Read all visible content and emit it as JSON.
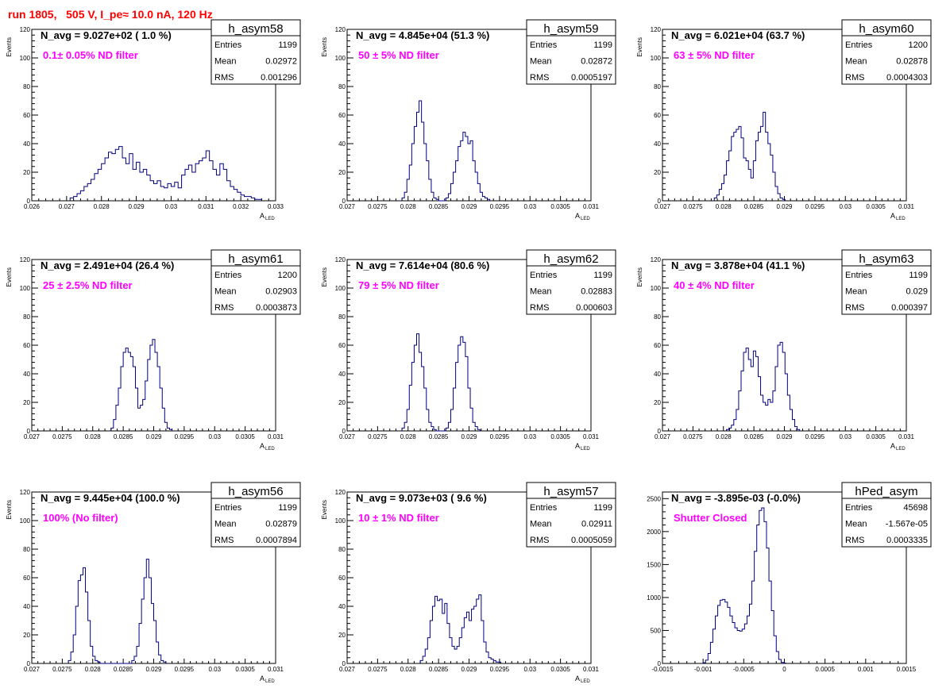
{
  "run_title": "run 1805,   505 V, I_pe≈ 10.0 nA, 120 Hz",
  "colors": {
    "histogram": "#000080",
    "annotation": "#ff00ff",
    "title": "#ff0000",
    "frame": "#000000"
  },
  "stat_labels": {
    "entries": "Entries",
    "mean": "Mean",
    "rms": "RMS"
  },
  "chart_data": [
    {
      "type": "histogram",
      "name": "h_asym58",
      "ylabel": "Events",
      "xlabel": "A",
      "xlabel_sub": "LED",
      "xlim": [
        0.026,
        0.033
      ],
      "ylim": [
        0,
        120
      ],
      "xticks": [
        0.026,
        0.027,
        0.028,
        0.029,
        0.03,
        0.031,
        0.032,
        0.033
      ],
      "xtick_labels": [
        "0.026",
        "0.027",
        "0.028",
        "0.029",
        "0.03",
        "0.031",
        "0.032",
        "0.033"
      ],
      "yticks": [
        0,
        20,
        40,
        60,
        80,
        100,
        120
      ],
      "ytick_labels": [
        "0",
        "20",
        "40",
        "60",
        "80",
        "100",
        "120"
      ],
      "header": "N_avg = 9.027e+02 ( 1.0 %)",
      "annotation": "0.1± 0.05% ND filter",
      "stats": {
        "entries": "1199",
        "mean": "0.02972",
        "rms": "0.001296"
      },
      "bins": {
        "start": 0.0271,
        "width": 0.0001,
        "counts": [
          2,
          3,
          5,
          7,
          10,
          12,
          15,
          19,
          22,
          26,
          30,
          34,
          33,
          36,
          38,
          30,
          26,
          33,
          22,
          27,
          20,
          22,
          18,
          14,
          12,
          14,
          10,
          9,
          12,
          10,
          13,
          9,
          18,
          22,
          25,
          20,
          26,
          28,
          30,
          35,
          28,
          22,
          18,
          26,
          22,
          14,
          10,
          8,
          6,
          4,
          3,
          3,
          2,
          1,
          1
        ]
      }
    },
    {
      "type": "histogram",
      "name": "h_asym59",
      "ylabel": "Events",
      "xlabel": "A",
      "xlabel_sub": "LED",
      "xlim": [
        0.027,
        0.031
      ],
      "ylim": [
        0,
        120
      ],
      "xticks": [
        0.027,
        0.0275,
        0.028,
        0.0285,
        0.029,
        0.0295,
        0.03,
        0.0305,
        0.031
      ],
      "xtick_labels": [
        "0.027",
        "0.0275",
        "0.028",
        "0.0285",
        "0.029",
        "0.0295",
        "0.03",
        "0.0305",
        "0.031"
      ],
      "yticks": [
        0,
        20,
        40,
        60,
        80,
        100,
        120
      ],
      "ytick_labels": [
        "0",
        "20",
        "40",
        "60",
        "80",
        "100",
        "120"
      ],
      "header": "N_avg = 4.845e+04 (51.3 %)",
      "annotation": "50 ± 5% ND filter",
      "stats": {
        "entries": "1199",
        "mean": "0.02872",
        "rms": "0.0005197"
      },
      "bins": {
        "start": 0.0279,
        "width": 4e-05,
        "counts": [
          2,
          6,
          15,
          25,
          40,
          52,
          62,
          70,
          55,
          40,
          28,
          15,
          6,
          2,
          1,
          0,
          0,
          0,
          2,
          5,
          12,
          20,
          28,
          38,
          42,
          48,
          45,
          40,
          42,
          28,
          20,
          12,
          6,
          3,
          2,
          1
        ]
      }
    },
    {
      "type": "histogram",
      "name": "h_asym60",
      "ylabel": "Events",
      "xlabel": "A",
      "xlabel_sub": "LED",
      "xlim": [
        0.027,
        0.031
      ],
      "ylim": [
        0,
        120
      ],
      "xticks": [
        0.027,
        0.0275,
        0.028,
        0.0285,
        0.029,
        0.0295,
        0.03,
        0.0305,
        0.031
      ],
      "xtick_labels": [
        "0.027",
        "0.0275",
        "0.028",
        "0.0285",
        "0.029",
        "0.0295",
        "0.03",
        "0.0305",
        "0.031"
      ],
      "yticks": [
        0,
        20,
        40,
        60,
        80,
        100,
        120
      ],
      "ytick_labels": [
        "0",
        "20",
        "40",
        "60",
        "80",
        "100",
        "120"
      ],
      "header": "N_avg = 6.021e+04 (63.7 %)",
      "annotation": "63 ± 5% ND filter",
      "stats": {
        "entries": "1200",
        "mean": "0.02878",
        "rms": "0.0004303"
      },
      "bins": {
        "start": 0.02785,
        "width": 4e-05,
        "counts": [
          2,
          4,
          8,
          12,
          18,
          28,
          35,
          45,
          48,
          50,
          52,
          44,
          30,
          28,
          22,
          16,
          28,
          42,
          48,
          52,
          62,
          48,
          40,
          32,
          20,
          10,
          5,
          2,
          1
        ]
      }
    },
    {
      "type": "histogram",
      "name": "h_asym61",
      "ylabel": "Events",
      "xlabel": "A",
      "xlabel_sub": "LED",
      "xlim": [
        0.027,
        0.031
      ],
      "ylim": [
        0,
        120
      ],
      "xticks": [
        0.027,
        0.0275,
        0.028,
        0.0285,
        0.029,
        0.0295,
        0.03,
        0.0305,
        0.031
      ],
      "xtick_labels": [
        "0.027",
        "0.0275",
        "0.028",
        "0.0285",
        "0.029",
        "0.0295",
        "0.03",
        "0.0305",
        "0.031"
      ],
      "yticks": [
        0,
        20,
        40,
        60,
        80,
        100,
        120
      ],
      "ytick_labels": [
        "0",
        "20",
        "40",
        "60",
        "80",
        "100",
        "120"
      ],
      "header": "N_avg = 2.491e+04 (26.4 %)",
      "annotation": "25 ± 2.5% ND filter",
      "stats": {
        "entries": "1200",
        "mean": "0.02903",
        "rms": "0.0003873"
      },
      "bins": {
        "start": 0.0283,
        "width": 4e-05,
        "counts": [
          2,
          8,
          18,
          30,
          45,
          55,
          58,
          55,
          52,
          45,
          30,
          16,
          18,
          22,
          35,
          50,
          60,
          64,
          55,
          45,
          30,
          16,
          6,
          2,
          1
        ]
      }
    },
    {
      "type": "histogram",
      "name": "h_asym62",
      "ylabel": "Events",
      "xlabel": "A",
      "xlabel_sub": "LED",
      "xlim": [
        0.027,
        0.031
      ],
      "ylim": [
        0,
        120
      ],
      "xticks": [
        0.027,
        0.0275,
        0.028,
        0.0285,
        0.029,
        0.0295,
        0.03,
        0.0305,
        0.031
      ],
      "xtick_labels": [
        "0.027",
        "0.0275",
        "0.028",
        "0.0285",
        "0.029",
        "0.0295",
        "0.03",
        "0.0305",
        "0.031"
      ],
      "yticks": [
        0,
        20,
        40,
        60,
        80,
        100,
        120
      ],
      "ytick_labels": [
        "0",
        "20",
        "40",
        "60",
        "80",
        "100",
        "120"
      ],
      "header": "N_avg = 7.614e+04 (80.6 %)",
      "annotation": "79 ± 5% ND filter",
      "stats": {
        "entries": "1199",
        "mean": "0.02883",
        "rms": "0.000603"
      },
      "bins": {
        "start": 0.0279,
        "width": 4e-05,
        "counts": [
          2,
          6,
          15,
          32,
          48,
          60,
          68,
          55,
          45,
          30,
          15,
          6,
          3,
          1,
          0,
          0,
          0,
          0,
          2,
          6,
          15,
          30,
          48,
          60,
          66,
          62,
          52,
          30,
          16,
          6,
          3,
          1
        ]
      }
    },
    {
      "type": "histogram",
      "name": "h_asym63",
      "ylabel": "Events",
      "xlabel": "A",
      "xlabel_sub": "LED",
      "xlim": [
        0.027,
        0.031
      ],
      "ylim": [
        0,
        120
      ],
      "xticks": [
        0.027,
        0.0275,
        0.028,
        0.0285,
        0.029,
        0.0295,
        0.03,
        0.0305,
        0.031
      ],
      "xtick_labels": [
        "0.027",
        "0.0275",
        "0.028",
        "0.0285",
        "0.029",
        "0.0295",
        "0.03",
        "0.0305",
        "0.031"
      ],
      "yticks": [
        0,
        20,
        40,
        60,
        80,
        100,
        120
      ],
      "ytick_labels": [
        "0",
        "20",
        "40",
        "60",
        "80",
        "100",
        "120"
      ],
      "header": "N_avg = 3.878e+04 (41.1 %)",
      "annotation": "40 ± 4% ND filter",
      "stats": {
        "entries": "1199",
        "mean": "0.029",
        "rms": "0.000397"
      },
      "bins": {
        "start": 0.02805,
        "width": 4e-05,
        "counts": [
          1,
          2,
          4,
          8,
          15,
          28,
          42,
          55,
          58,
          50,
          45,
          56,
          52,
          38,
          25,
          20,
          18,
          22,
          20,
          28,
          45,
          60,
          62,
          55,
          40,
          25,
          15,
          8,
          3,
          1
        ]
      }
    },
    {
      "type": "histogram",
      "name": "h_asym56",
      "ylabel": "Events",
      "xlabel": "A",
      "xlabel_sub": "LED",
      "xlim": [
        0.027,
        0.031
      ],
      "ylim": [
        0,
        120
      ],
      "xticks": [
        0.027,
        0.0275,
        0.028,
        0.0285,
        0.029,
        0.0295,
        0.03,
        0.0305,
        0.031
      ],
      "xtick_labels": [
        "0.027",
        "0.0275",
        "0.028",
        "0.0285",
        "0.029",
        "0.0295",
        "0.03",
        "0.0305",
        "0.031"
      ],
      "yticks": [
        0,
        20,
        40,
        60,
        80,
        100,
        120
      ],
      "ytick_labels": [
        "0",
        "20",
        "40",
        "60",
        "80",
        "100",
        "120"
      ],
      "header": "N_avg = 9.445e+04 (100.0 %)",
      "annotation": "100% (No filter)",
      "stats": {
        "entries": "1199",
        "mean": "0.02879",
        "rms": "0.0007894"
      },
      "bins": {
        "start": 0.0276,
        "width": 4e-05,
        "counts": [
          2,
          8,
          20,
          40,
          58,
          62,
          67,
          50,
          30,
          12,
          5,
          2,
          1,
          0,
          0,
          0,
          0,
          0,
          0,
          0,
          0,
          0,
          0,
          0,
          0,
          0,
          2,
          5,
          12,
          28,
          45,
          60,
          73,
          60,
          42,
          30,
          15,
          6,
          2,
          1
        ]
      }
    },
    {
      "type": "histogram",
      "name": "h_asym57",
      "ylabel": "Events",
      "xlabel": "A",
      "xlabel_sub": "LED",
      "xlim": [
        0.027,
        0.031
      ],
      "ylim": [
        0,
        120
      ],
      "xticks": [
        0.027,
        0.0275,
        0.028,
        0.0285,
        0.029,
        0.0295,
        0.03,
        0.0305,
        0.031
      ],
      "xtick_labels": [
        "0.027",
        "0.0275",
        "0.028",
        "0.0285",
        "0.029",
        "0.0295",
        "0.03",
        "0.0305",
        "0.031"
      ],
      "yticks": [
        0,
        20,
        40,
        60,
        80,
        100,
        120
      ],
      "ytick_labels": [
        "0",
        "20",
        "40",
        "60",
        "80",
        "100",
        "120"
      ],
      "header": "N_avg = 9.073e+03 ( 9.6 %)",
      "annotation": "10 ± 1% ND filter",
      "stats": {
        "entries": "1199",
        "mean": "0.02911",
        "rms": "0.0005059"
      },
      "bins": {
        "start": 0.0282,
        "width": 4e-05,
        "counts": [
          2,
          5,
          10,
          18,
          30,
          40,
          47,
          44,
          45,
          35,
          42,
          28,
          18,
          12,
          10,
          12,
          18,
          25,
          32,
          36,
          30,
          38,
          40,
          45,
          48,
          30,
          15,
          8,
          4,
          3,
          2,
          1,
          1
        ]
      }
    },
    {
      "type": "histogram",
      "name": "hPed_asym",
      "ylabel": "",
      "xlabel": "",
      "xlabel_sub": "",
      "xlim": [
        -0.0015,
        0.0015
      ],
      "ylim": [
        0,
        2600
      ],
      "xticks": [
        -0.0015,
        -0.001,
        -0.0005,
        0,
        0.0005,
        0.001,
        0.0015
      ],
      "xtick_labels": [
        "-0.0015",
        "-0.001",
        "-0.0005",
        "0",
        "0.0005",
        "0.001",
        "0.0015"
      ],
      "yticks": [
        0,
        500,
        1000,
        1500,
        2000,
        2500
      ],
      "ytick_labels": [
        "0",
        "500",
        "1000",
        "1500",
        "2000",
        "2500"
      ],
      "header": "N_avg = -3.895e-03 (-0.0%)",
      "annotation": "Shutter Closed",
      "stats": {
        "entries": "45698",
        "mean": "-1.567e-05",
        "rms": "0.0003335"
      },
      "bins": {
        "start": -0.001,
        "width": 3e-05,
        "counts": [
          10,
          50,
          150,
          320,
          520,
          720,
          880,
          960,
          970,
          930,
          850,
          720,
          620,
          540,
          500,
          490,
          520,
          600,
          720,
          900,
          1250,
          1700,
          2100,
          2320,
          2360,
          2150,
          1750,
          1250,
          800,
          420,
          180,
          60,
          15,
          5
        ]
      }
    }
  ]
}
